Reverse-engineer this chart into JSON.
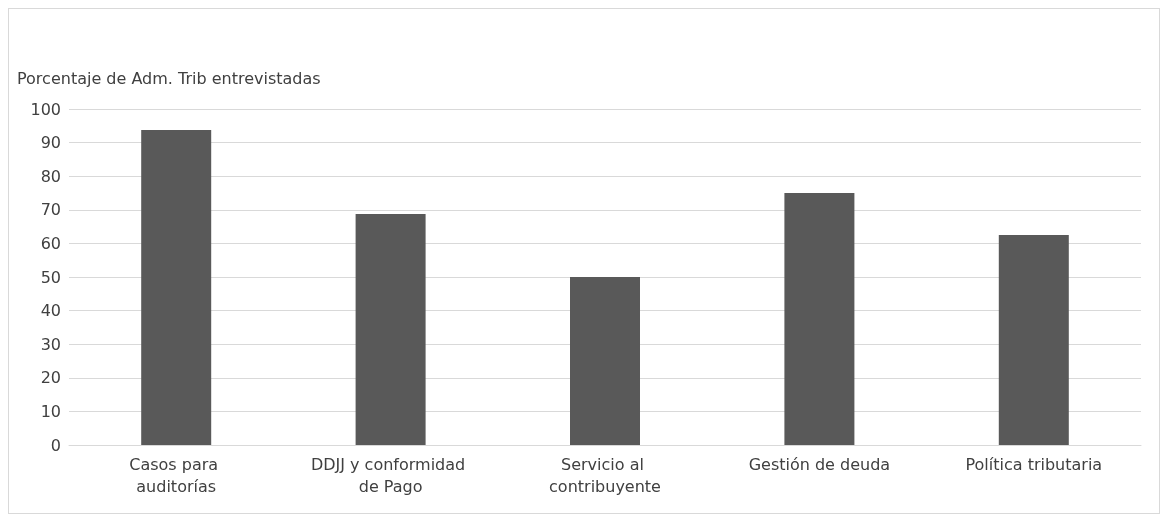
{
  "chart_data": {
    "type": "bar",
    "ylabel": "Porcentaje de Adm. Trib entrevistadas",
    "categories": [
      "Casos para auditorías",
      "DDJJ y conformidad de Pago",
      "Servicio al contribuyente",
      "Gestión de deuda",
      "Política tributaria"
    ],
    "values": [
      93.75,
      68.75,
      50,
      75,
      62.5
    ],
    "color": "#595959",
    "ylim": [
      0,
      100
    ],
    "yticks": [
      0,
      10,
      20,
      30,
      40,
      50,
      60,
      70,
      80,
      90,
      100
    ],
    "grid": "y"
  }
}
